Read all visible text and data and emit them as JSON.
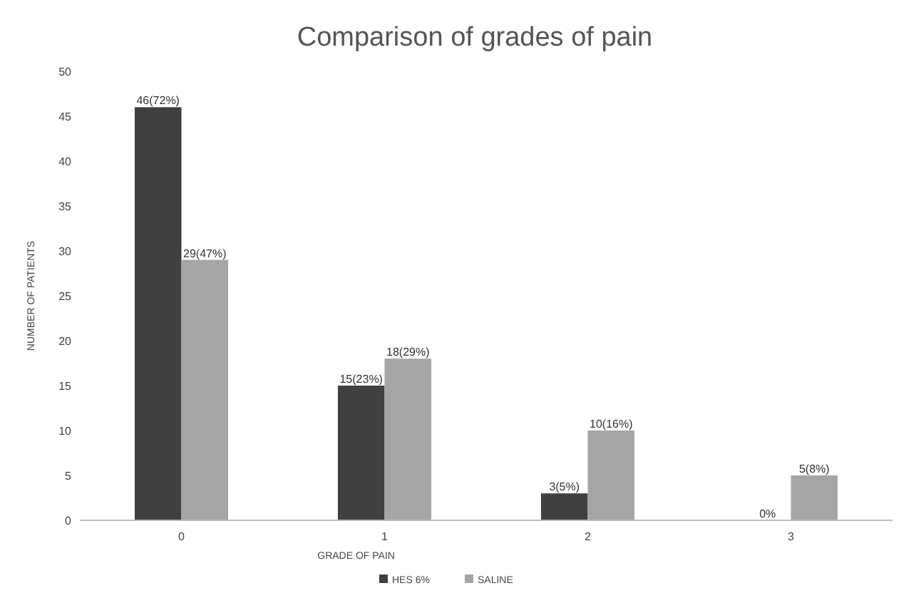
{
  "chart_data": {
    "type": "bar",
    "title": "Comparison of grades of pain",
    "xlabel": "GRADE OF PAIN",
    "ylabel": "NUMBER OF PATIENTS",
    "categories": [
      "0",
      "1",
      "2",
      "3"
    ],
    "series": [
      {
        "name": "HES 6%",
        "color": "#404040",
        "values": [
          46,
          15,
          3,
          0
        ],
        "value_labels": [
          "46(72%)",
          "15(23%)",
          "3(5%)",
          "0%"
        ]
      },
      {
        "name": "SALINE",
        "color": "#a5a5a5",
        "values": [
          29,
          18,
          10,
          5
        ],
        "value_labels": [
          "29(47%)",
          "18(29%)",
          "10(16%)",
          "5(8%)"
        ]
      }
    ],
    "ylim": [
      0,
      50
    ],
    "yticks": [
      0,
      5,
      10,
      15,
      20,
      25,
      30,
      35,
      40,
      45,
      50
    ],
    "grid": false,
    "legend": "bottom"
  }
}
